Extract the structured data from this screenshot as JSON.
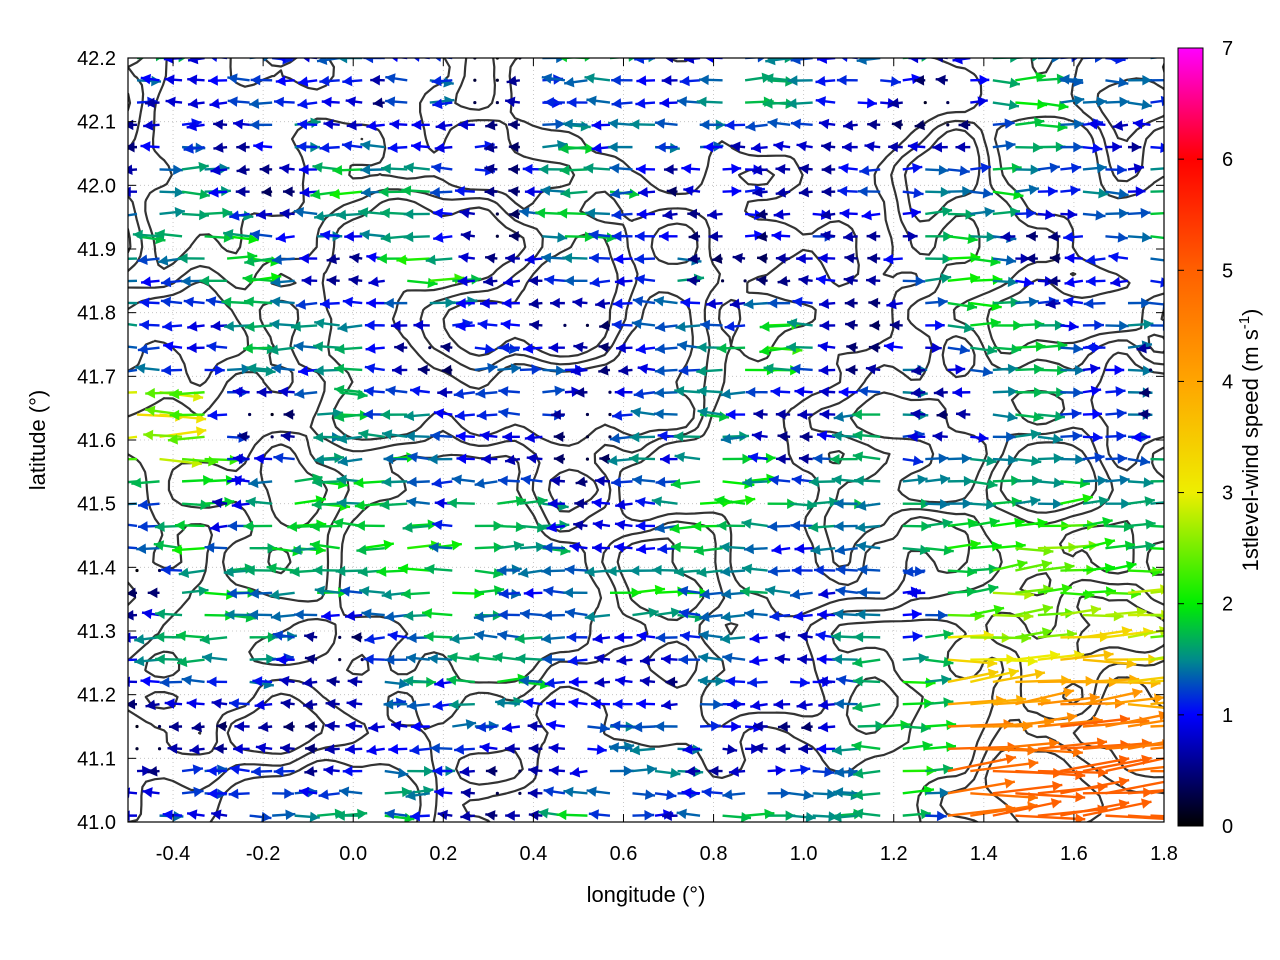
{
  "chart_data": {
    "type": "vector-field",
    "xlabel": "longitude (°)",
    "ylabel": "latitude (°)",
    "xlim": [
      -0.5,
      1.8
    ],
    "ylim": [
      41.0,
      42.2
    ],
    "x_ticks": [
      "-0.4",
      "-0.2",
      "0.0",
      "0.2",
      "0.4",
      "0.6",
      "0.8",
      "1.0",
      "1.2",
      "1.4",
      "1.6",
      "1.8"
    ],
    "y_ticks": [
      "41.0",
      "41.1",
      "41.2",
      "41.3",
      "41.4",
      "41.5",
      "41.6",
      "41.7",
      "41.8",
      "41.9",
      "42.0",
      "42.1",
      "42.2"
    ],
    "grid": true,
    "colorbar": {
      "label_main": "1stlevel-wind speed (m s",
      "label_sup": "-1",
      "label_end": ")",
      "range": [
        0,
        7
      ],
      "ticks": [
        "0",
        "1",
        "2",
        "3",
        "4",
        "5",
        "6",
        "7"
      ],
      "palette": [
        [
          0,
          "#000000"
        ],
        [
          1,
          "#0000ff"
        ],
        [
          1.5,
          "#008b8b"
        ],
        [
          2,
          "#00ee00"
        ],
        [
          3,
          "#eeee00"
        ],
        [
          4,
          "#ffa500"
        ],
        [
          5,
          "#ff6000"
        ],
        [
          6,
          "#ff0000"
        ],
        [
          7,
          "#ff00ff"
        ]
      ]
    },
    "contour_color": "#333333",
    "field_summary": {
      "grid_spacing_deg": [
        0.05,
        0.035
      ],
      "prevailing_direction": "mostly westward in west and center, eastward in southeast",
      "max_speed_region": "southeast corner near longitude 1.7, latitude 41.0-41.15",
      "max_speed": 5.0
    }
  }
}
